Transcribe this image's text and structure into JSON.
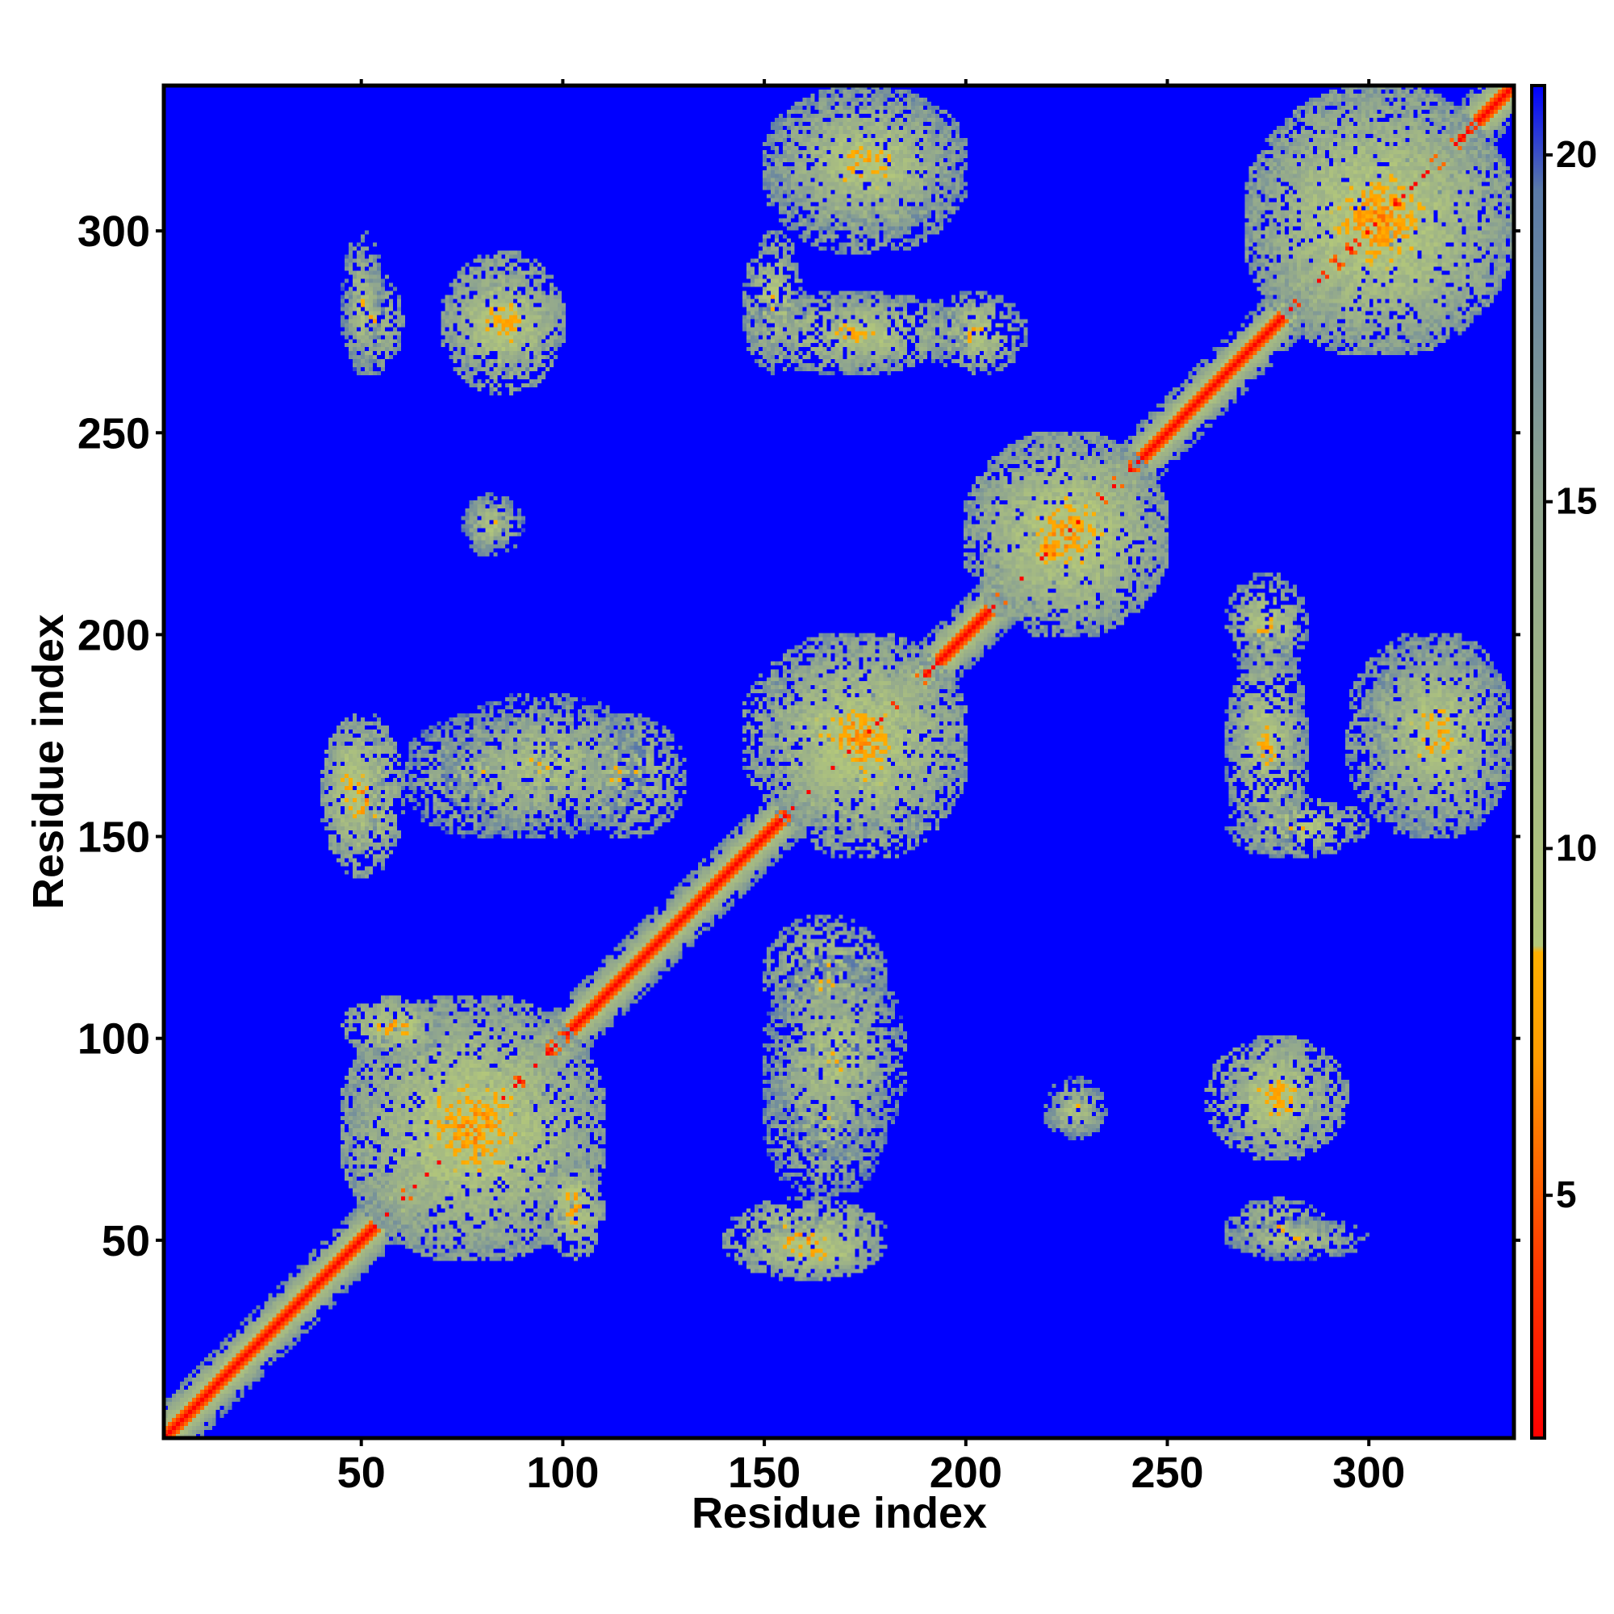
{
  "chart_data": {
    "type": "heatmap",
    "title": "",
    "xlabel": "Residue index",
    "ylabel": "Residue index",
    "xlim": [
      1,
      336
    ],
    "ylim": [
      1,
      336
    ],
    "x_ticks": [
      50,
      100,
      150,
      200,
      250,
      300
    ],
    "y_ticks": [
      50,
      100,
      150,
      200,
      250,
      300
    ],
    "x_tick_labels": [
      "50",
      "100",
      "150",
      "200",
      "250",
      "300"
    ],
    "y_tick_labels": [
      "50",
      "100",
      "150",
      "200",
      "250",
      "300"
    ],
    "n_residues": 336,
    "colorbar": {
      "range": [
        1.5,
        21
      ],
      "ticks": [
        5,
        10,
        15,
        20
      ],
      "tick_labels": [
        "5",
        "10",
        "15",
        "20"
      ],
      "stops": [
        {
          "value": 1.5,
          "color": "#ff0000"
        },
        {
          "value": 4.0,
          "color": "#ff3a00"
        },
        {
          "value": 7.0,
          "color": "#ff9c00"
        },
        {
          "value": 8.5,
          "color": "#ffb000"
        },
        {
          "value": 8.6,
          "color": "#b4c87a"
        },
        {
          "value": 15.0,
          "color": "#8fa58f"
        },
        {
          "value": 19.5,
          "color": "#5a7aa8"
        },
        {
          "value": 21.0,
          "color": "#0000ff"
        }
      ],
      "background_color": "#0000ff"
    },
    "matrix_description": "Symmetric residue-residue distance map (Angstrom); diagonal near 0, contact regions below 10",
    "contact_regions": [
      {
        "i": [
          45,
          60
        ],
        "j": [
          265,
          290
        ],
        "min_distance": 6
      },
      {
        "i": [
          70,
          100
        ],
        "j": [
          260,
          295
        ],
        "min_distance": 5
      },
      {
        "i": [
          145,
          160
        ],
        "j": [
          265,
          300
        ],
        "min_distance": 6
      },
      {
        "i": [
          165,
          185
        ],
        "j": [
          265,
          285
        ],
        "min_distance": 6
      },
      {
        "i": [
          190,
          215
        ],
        "j": [
          265,
          285
        ],
        "min_distance": 6
      },
      {
        "i": [
          150,
          200
        ],
        "j": [
          295,
          336
        ],
        "min_distance": 6
      },
      {
        "i": [
          270,
          336
        ],
        "j": [
          270,
          336
        ],
        "min_distance": 5
      },
      {
        "i": [
          75,
          85
        ],
        "j": [
          220,
          235
        ],
        "min_distance": 7
      },
      {
        "i": [
          40,
          60
        ],
        "j": [
          140,
          180
        ],
        "min_distance": 5
      },
      {
        "i": [
          60,
          100
        ],
        "j": [
          150,
          180
        ],
        "min_distance": 7
      },
      {
        "i": [
          100,
          130
        ],
        "j": [
          150,
          180
        ],
        "min_distance": 6
      },
      {
        "i": [
          145,
          200
        ],
        "j": [
          150,
          200
        ],
        "min_distance": 5
      },
      {
        "i": [
          200,
          250
        ],
        "j": [
          200,
          250
        ],
        "min_distance": 5
      },
      {
        "i": [
          265,
          285
        ],
        "j": [
          145,
          200
        ],
        "min_distance": 6
      },
      {
        "i": [
          300,
          336
        ],
        "j": [
          150,
          200
        ],
        "min_distance": 6
      },
      {
        "i": [
          45,
          110
        ],
        "j": [
          45,
          110
        ],
        "min_distance": 5
      },
      {
        "i": [
          95,
          110
        ],
        "j": [
          45,
          70
        ],
        "min_distance": 5
      },
      {
        "i": [
          145,
          180
        ],
        "j": [
          40,
          55
        ],
        "min_distance": 5
      },
      {
        "i": [
          150,
          185
        ],
        "j": [
          70,
          120
        ],
        "min_distance": 7
      },
      {
        "i": [
          220,
          235
        ],
        "j": [
          75,
          90
        ],
        "min_distance": 7
      },
      {
        "i": [
          265,
          290
        ],
        "j": [
          70,
          100
        ],
        "min_distance": 5
      },
      {
        "i": [
          265,
          300
        ],
        "j": [
          45,
          55
        ],
        "min_distance": 7
      }
    ]
  }
}
